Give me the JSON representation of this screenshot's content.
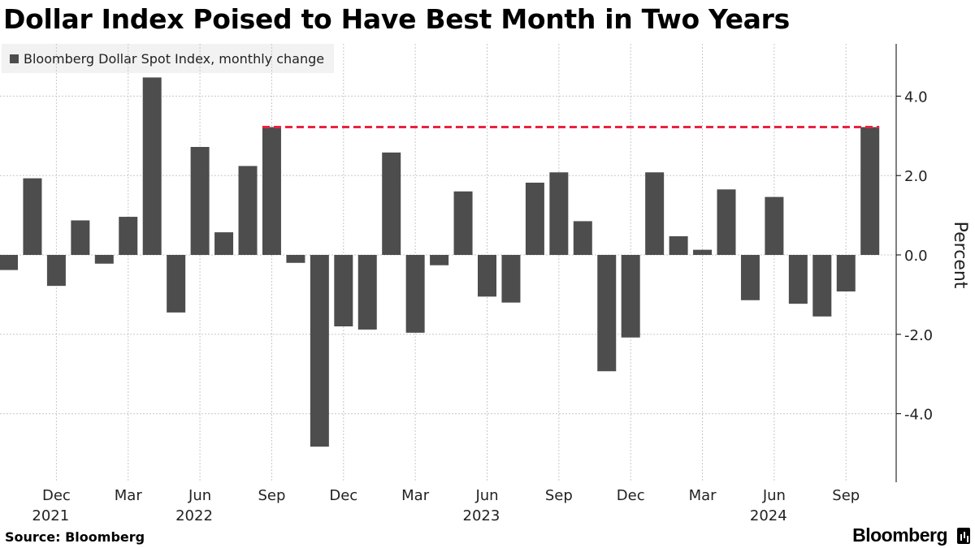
{
  "chart_data": {
    "type": "bar",
    "title": "Dollar Index Poised to Have Best Month in Two Years",
    "legend": [
      "Bloomberg Dollar Spot Index, monthly change"
    ],
    "legend_position": "top-left",
    "ylabel": "Percent",
    "ylim": [
      -5.8,
      5.4
    ],
    "yticks": [
      -4.0,
      -2.0,
      0.0,
      2.0,
      4.0
    ],
    "ytick_labels": [
      "-4.0",
      "-2.0",
      "0.0",
      "2.0",
      "4.0"
    ],
    "y_axis_side": "right",
    "grid": true,
    "months": [
      "2021-10",
      "2021-11",
      "2021-12",
      "2022-01",
      "2022-02",
      "2022-03",
      "2022-04",
      "2022-05",
      "2022-06",
      "2022-07",
      "2022-08",
      "2022-09",
      "2022-10",
      "2022-11",
      "2022-12",
      "2023-01",
      "2023-02",
      "2023-03",
      "2023-04",
      "2023-05",
      "2023-06",
      "2023-07",
      "2023-08",
      "2023-09",
      "2023-10",
      "2023-11",
      "2023-12",
      "2024-01",
      "2024-02",
      "2024-03",
      "2024-04",
      "2024-05",
      "2024-06",
      "2024-07",
      "2024-08",
      "2024-09",
      "2024-10"
    ],
    "values": [
      -0.38,
      1.93,
      -0.78,
      0.87,
      -0.22,
      0.96,
      4.47,
      -1.45,
      2.72,
      0.57,
      2.24,
      3.22,
      -0.2,
      -4.83,
      -1.8,
      -1.88,
      2.58,
      -1.96,
      -0.26,
      1.6,
      -1.05,
      -1.2,
      1.82,
      2.08,
      0.85,
      -2.93,
      -2.08,
      2.08,
      0.47,
      0.13,
      1.65,
      -1.14,
      1.46,
      -1.23,
      -1.55,
      -0.92,
      3.22
    ],
    "x_tick_labels": [
      {
        "index": 2,
        "label": "Dec",
        "year": "2021"
      },
      {
        "index": 5,
        "label": "Mar",
        "year": ""
      },
      {
        "index": 8,
        "label": "Jun",
        "year": "2022"
      },
      {
        "index": 11,
        "label": "Sep",
        "year": ""
      },
      {
        "index": 14,
        "label": "Dec",
        "year": ""
      },
      {
        "index": 17,
        "label": "Mar",
        "year": ""
      },
      {
        "index": 20,
        "label": "Jun",
        "year": "2023"
      },
      {
        "index": 23,
        "label": "Sep",
        "year": ""
      },
      {
        "index": 26,
        "label": "Dec",
        "year": ""
      },
      {
        "index": 29,
        "label": "Mar",
        "year": ""
      },
      {
        "index": 32,
        "label": "Jun",
        "year": "2024"
      },
      {
        "index": 35,
        "label": "Sep",
        "year": ""
      }
    ],
    "reference_line": {
      "value": 3.22,
      "from_index": 11,
      "to_index": 36,
      "style": "dashed"
    },
    "colors": {
      "bar": "#4d4d4d",
      "reference_line": "#e8233f",
      "grid": "#c8c8c8",
      "axis": "#000000"
    }
  },
  "footer": {
    "source": "Source: Bloomberg",
    "brand": "Bloomberg"
  }
}
